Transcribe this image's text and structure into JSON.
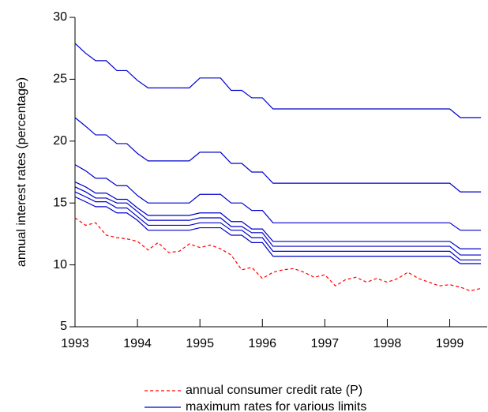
{
  "chart_data": {
    "type": "line",
    "ylabel": "annual interest rates (percentage)",
    "x": [
      1993,
      1993.17,
      1993.33,
      1993.5,
      1993.67,
      1993.83,
      1994,
      1994.17,
      1994.33,
      1994.5,
      1994.67,
      1994.83,
      1995,
      1995.17,
      1995.33,
      1995.5,
      1995.67,
      1995.83,
      1996,
      1996.17,
      1996.33,
      1996.5,
      1996.67,
      1996.83,
      1997,
      1997.17,
      1997.33,
      1997.5,
      1997.67,
      1997.83,
      1998,
      1998.17,
      1998.33,
      1998.5,
      1998.67,
      1998.83,
      1999,
      1999.17,
      1999.33,
      1999.5
    ],
    "xlim": [
      1993,
      1999.6
    ],
    "xticks": [
      1993,
      1994,
      1995,
      1996,
      1997,
      1998,
      1999
    ],
    "ylim": [
      5,
      30
    ],
    "yticks": [
      5,
      10,
      15,
      20,
      25,
      30
    ],
    "series": [
      {
        "name": "annual consumer credit rate (P)",
        "color": "#ff0000",
        "dash": true,
        "values": [
          13.8,
          13.2,
          13.4,
          12.4,
          12.2,
          12.1,
          11.9,
          11.2,
          11.8,
          11.0,
          11.1,
          11.7,
          11.4,
          11.6,
          11.3,
          10.8,
          9.6,
          9.8,
          8.9,
          9.4,
          9.6,
          9.7,
          9.4,
          9.0,
          9.2,
          8.3,
          8.8,
          9.0,
          8.6,
          8.9,
          8.6,
          8.9,
          9.4,
          8.9,
          8.6,
          8.3,
          8.4,
          8.2,
          7.9,
          8.1
        ]
      },
      {
        "name": "maximum rates for various limits",
        "color": "#0000cc",
        "values": [
          27.9,
          27.1,
          26.5,
          26.5,
          25.7,
          25.7,
          24.9,
          24.3,
          24.3,
          24.3,
          24.3,
          24.3,
          25.1,
          25.1,
          25.1,
          24.1,
          24.1,
          23.5,
          23.5,
          22.6,
          22.6,
          22.6,
          22.6,
          22.6,
          22.6,
          22.6,
          22.6,
          22.6,
          22.6,
          22.6,
          22.6,
          22.6,
          22.6,
          22.6,
          22.6,
          22.6,
          22.6,
          21.9,
          21.9,
          21.9
        ]
      },
      {
        "color": "#0000cc",
        "values": [
          21.9,
          21.2,
          20.5,
          20.5,
          19.8,
          19.8,
          19.0,
          18.4,
          18.4,
          18.4,
          18.4,
          18.4,
          19.1,
          19.1,
          19.1,
          18.2,
          18.2,
          17.5,
          17.5,
          16.6,
          16.6,
          16.6,
          16.6,
          16.6,
          16.6,
          16.6,
          16.6,
          16.6,
          16.6,
          16.6,
          16.6,
          16.6,
          16.6,
          16.6,
          16.6,
          16.6,
          16.6,
          15.9,
          15.9,
          15.9
        ]
      },
      {
        "color": "#0000cc",
        "values": [
          18.1,
          17.6,
          17.0,
          17.0,
          16.4,
          16.4,
          15.6,
          15.0,
          15.0,
          15.0,
          15.0,
          15.0,
          15.7,
          15.7,
          15.7,
          15.0,
          15.0,
          14.4,
          14.4,
          13.4,
          13.4,
          13.4,
          13.4,
          13.4,
          13.4,
          13.4,
          13.4,
          13.4,
          13.4,
          13.4,
          13.4,
          13.4,
          13.4,
          13.4,
          13.4,
          13.4,
          13.4,
          12.8,
          12.8,
          12.8
        ]
      },
      {
        "color": "#0000cc",
        "values": [
          16.7,
          16.3,
          15.8,
          15.8,
          15.3,
          15.3,
          14.6,
          14.0,
          14.0,
          14.0,
          14.0,
          14.0,
          14.2,
          14.2,
          14.2,
          13.5,
          13.5,
          12.9,
          12.9,
          11.9,
          11.9,
          11.9,
          11.9,
          11.9,
          11.9,
          11.9,
          11.9,
          11.9,
          11.9,
          11.9,
          11.9,
          11.9,
          11.9,
          11.9,
          11.9,
          11.9,
          11.9,
          11.3,
          11.3,
          11.3
        ]
      },
      {
        "color": "#0000cc",
        "values": [
          16.3,
          15.9,
          15.4,
          15.4,
          15.0,
          15.0,
          14.3,
          13.6,
          13.6,
          13.6,
          13.6,
          13.6,
          13.8,
          13.8,
          13.8,
          13.1,
          13.1,
          12.6,
          12.6,
          11.5,
          11.5,
          11.5,
          11.5,
          11.5,
          11.5,
          11.5,
          11.5,
          11.5,
          11.5,
          11.5,
          11.5,
          11.5,
          11.5,
          11.5,
          11.5,
          11.5,
          11.5,
          10.8,
          10.8,
          10.8
        ]
      },
      {
        "color": "#0000cc",
        "values": [
          15.9,
          15.5,
          15.1,
          15.1,
          14.6,
          14.6,
          13.9,
          13.2,
          13.2,
          13.2,
          13.2,
          13.2,
          13.4,
          13.4,
          13.4,
          12.8,
          12.8,
          12.2,
          12.2,
          11.1,
          11.1,
          11.1,
          11.1,
          11.1,
          11.1,
          11.1,
          11.1,
          11.1,
          11.1,
          11.1,
          11.1,
          11.1,
          11.1,
          11.1,
          11.1,
          11.1,
          11.1,
          10.4,
          10.4,
          10.4
        ]
      },
      {
        "color": "#0000cc",
        "values": [
          15.5,
          15.1,
          14.7,
          14.7,
          14.2,
          14.2,
          13.6,
          12.8,
          12.8,
          12.8,
          12.8,
          12.8,
          13.0,
          13.0,
          13.0,
          12.4,
          12.4,
          11.8,
          11.8,
          10.7,
          10.7,
          10.7,
          10.7,
          10.7,
          10.7,
          10.7,
          10.7,
          10.7,
          10.7,
          10.7,
          10.7,
          10.7,
          10.7,
          10.7,
          10.7,
          10.7,
          10.7,
          10.1,
          10.1,
          10.1
        ]
      }
    ]
  }
}
